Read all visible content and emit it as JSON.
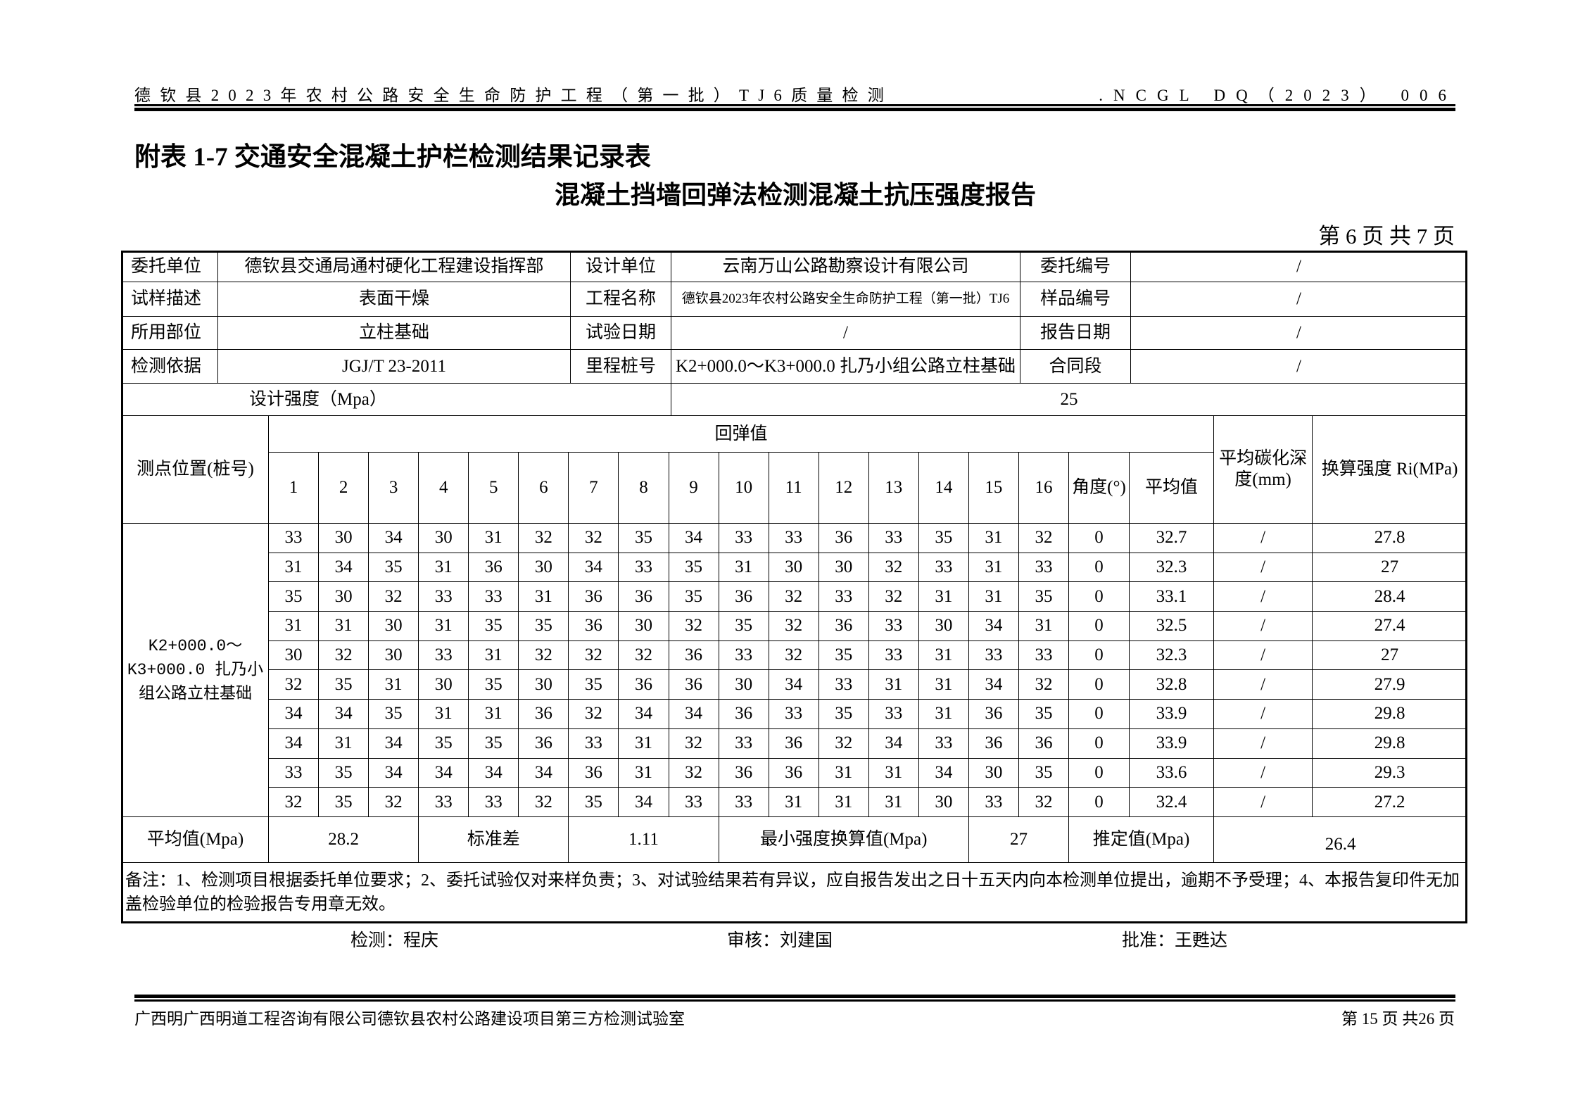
{
  "header": {
    "left": "德钦县2023年农村公路安全生命防护工程（第一批）TJ6质量检测",
    "right": ".NCGL DQ（2023） 006"
  },
  "title1": "附表 1-7 交通安全混凝土护栏检测结果记录表",
  "title2": "混凝土挡墙回弹法检测混凝土抗压强度报告",
  "page_info": "第 6 页  共 7 页",
  "info_rows": [
    [
      "委托单位",
      "德钦县交通局通村硬化工程建设指挥部",
      "设计单位",
      "云南万山公路勘察设计有限公司",
      "委托编号",
      "/"
    ],
    [
      "试样描述",
      "表面干燥",
      "工程名称",
      "德钦县2023年农村公路安全生命防护工程（第一批）TJ6",
      "样品编号",
      "/"
    ],
    [
      "所用部位",
      "立柱基础",
      "试验日期",
      "/",
      "报告日期",
      "/"
    ],
    [
      "检测依据",
      "JGJ/T 23-2011",
      "里程桩号",
      "K2+000.0～K3+000.0 扎乃小组公路立柱基础",
      "合同段",
      "/"
    ]
  ],
  "design_strength": {
    "label": "设计强度（Mpa）",
    "value": "25"
  },
  "table": {
    "location_header": "测点位置(桩号)",
    "rebound_header": "回弹值",
    "point_headers": [
      "1",
      "2",
      "3",
      "4",
      "5",
      "6",
      "7",
      "8",
      "9",
      "10",
      "11",
      "12",
      "13",
      "14",
      "15",
      "16"
    ],
    "angle_header": "角度(°)",
    "avg_header": "平均值",
    "carb_header": "平均碳化深度(mm)",
    "strength_header": "换算强度 Ri(MPa)",
    "location": "K2+000.0～K3+000.0 扎乃小组公路立柱基础",
    "rows": [
      {
        "values": [
          "33",
          "30",
          "34",
          "30",
          "31",
          "32",
          "32",
          "35",
          "34",
          "33",
          "33",
          "36",
          "33",
          "35",
          "31",
          "32"
        ],
        "angle": "0",
        "avg": "32.7",
        "carb": "/",
        "strength": "27.8"
      },
      {
        "values": [
          "31",
          "34",
          "35",
          "31",
          "36",
          "30",
          "34",
          "33",
          "35",
          "31",
          "30",
          "30",
          "32",
          "33",
          "31",
          "33"
        ],
        "angle": "0",
        "avg": "32.3",
        "carb": "/",
        "strength": "27"
      },
      {
        "values": [
          "35",
          "30",
          "32",
          "33",
          "33",
          "31",
          "36",
          "36",
          "35",
          "36",
          "32",
          "33",
          "32",
          "31",
          "31",
          "35"
        ],
        "angle": "0",
        "avg": "33.1",
        "carb": "/",
        "strength": "28.4"
      },
      {
        "values": [
          "31",
          "31",
          "30",
          "31",
          "35",
          "35",
          "36",
          "30",
          "32",
          "35",
          "32",
          "36",
          "33",
          "30",
          "34",
          "31"
        ],
        "angle": "0",
        "avg": "32.5",
        "carb": "/",
        "strength": "27.4"
      },
      {
        "values": [
          "30",
          "32",
          "30",
          "33",
          "31",
          "32",
          "32",
          "32",
          "36",
          "33",
          "32",
          "35",
          "33",
          "31",
          "33",
          "33"
        ],
        "angle": "0",
        "avg": "32.3",
        "carb": "/",
        "strength": "27"
      },
      {
        "values": [
          "32",
          "35",
          "31",
          "30",
          "35",
          "30",
          "35",
          "36",
          "36",
          "30",
          "34",
          "33",
          "31",
          "31",
          "34",
          "32"
        ],
        "angle": "0",
        "avg": "32.8",
        "carb": "/",
        "strength": "27.9"
      },
      {
        "values": [
          "34",
          "34",
          "35",
          "31",
          "31",
          "36",
          "32",
          "34",
          "34",
          "36",
          "33",
          "35",
          "33",
          "31",
          "36",
          "35"
        ],
        "angle": "0",
        "avg": "33.9",
        "carb": "/",
        "strength": "29.8"
      },
      {
        "values": [
          "34",
          "31",
          "34",
          "35",
          "35",
          "36",
          "33",
          "31",
          "32",
          "33",
          "36",
          "32",
          "34",
          "33",
          "36",
          "36"
        ],
        "angle": "0",
        "avg": "33.9",
        "carb": "/",
        "strength": "29.8"
      },
      {
        "values": [
          "33",
          "35",
          "34",
          "34",
          "34",
          "34",
          "36",
          "31",
          "32",
          "36",
          "36",
          "31",
          "31",
          "34",
          "30",
          "35"
        ],
        "angle": "0",
        "avg": "33.6",
        "carb": "/",
        "strength": "29.3"
      },
      {
        "values": [
          "32",
          "35",
          "32",
          "33",
          "33",
          "32",
          "35",
          "34",
          "33",
          "33",
          "31",
          "31",
          "31",
          "30",
          "33",
          "32"
        ],
        "angle": "0",
        "avg": "32.4",
        "carb": "/",
        "strength": "27.2"
      }
    ]
  },
  "summary": {
    "mean_label": "平均值(Mpa)",
    "mean": "28.2",
    "std_label": "标准差",
    "std": "1.11",
    "min_label": "最小强度换算值(Mpa)",
    "min": "27",
    "est_label": "推定值(Mpa)",
    "est": "26.4"
  },
  "notes": "备注：1、检测项目根据委托单位要求；2、委托试验仅对来样负责；3、对试验结果若有异议，应自报告发出之日十五天内向本检测单位提出，逾期不予受理；4、本报告复印件无加盖检验单位的检验报告专用章无效。",
  "signatures": {
    "tester": "检测：程庆",
    "reviewer": "审核：刘建国",
    "approver": "批准：王甦达"
  },
  "footer": {
    "left": "广西明广西明道工程咨询有限公司德钦县农村公路建设项目第三方检测试验室",
    "right": "第 15 页 共26 页"
  }
}
